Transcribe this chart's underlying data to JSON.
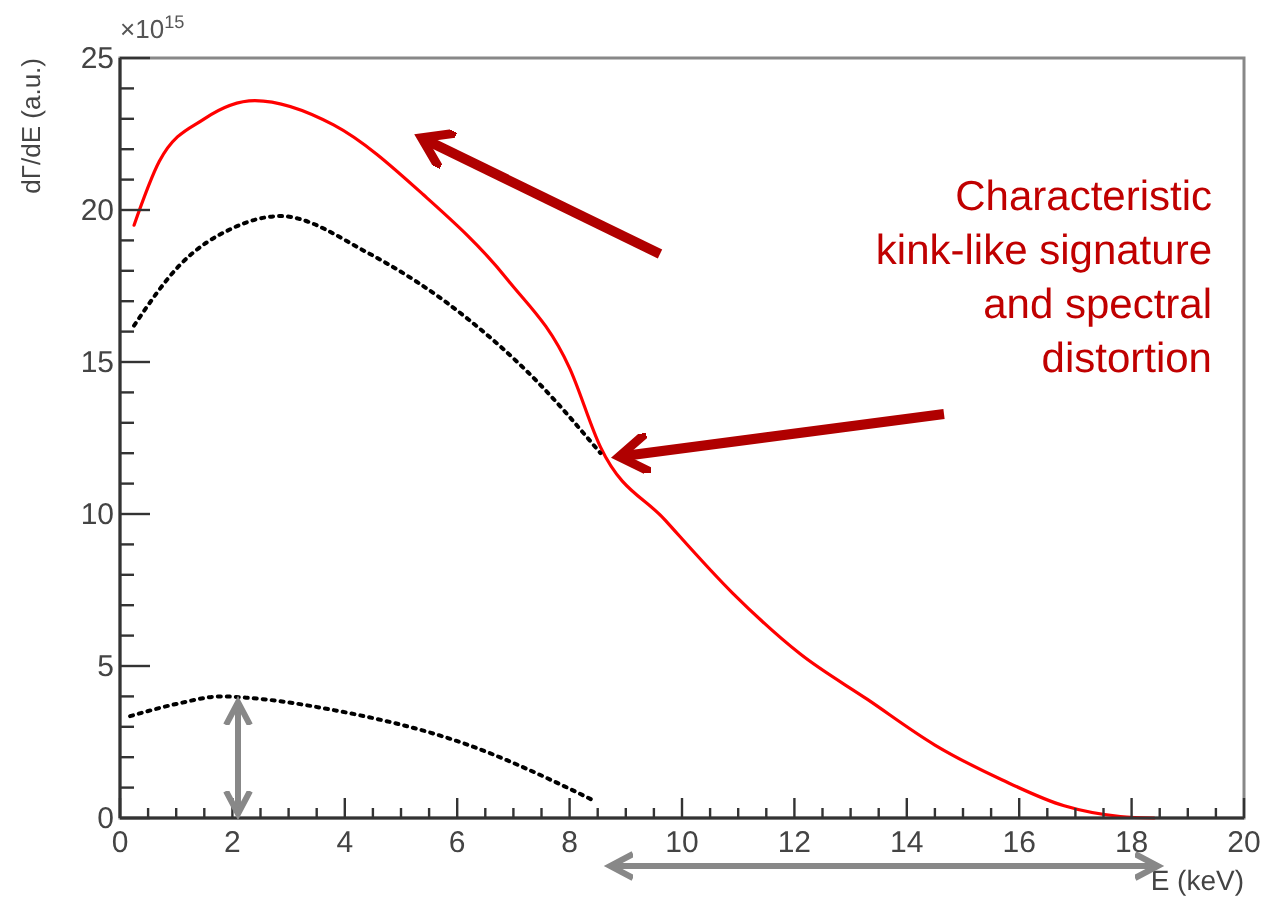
{
  "chart_data": {
    "type": "line",
    "xlabel": "E (keV)",
    "ylabel": "dΓ/dE (a.u.)",
    "xlim": [
      0,
      20
    ],
    "ylim": [
      0,
      25
    ],
    "xticks": [
      0,
      {
        "value": 0.5,
        "label": null
      },
      {
        "value": 1,
        "label": null
      },
      {
        "value": 1.5,
        "label": null
      },
      2,
      {
        "value": 2.5,
        "label": null
      },
      {
        "value": 3,
        "label": null
      },
      {
        "value": 3.5,
        "label": null
      },
      4,
      {
        "value": 4.5,
        "label": null
      },
      {
        "value": 5,
        "label": null
      },
      {
        "value": 5.5,
        "label": null
      },
      6,
      {
        "value": 6.5,
        "label": null
      },
      {
        "value": 7,
        "label": null
      },
      {
        "value": 7.5,
        "label": null
      },
      8,
      {
        "value": 8.5,
        "label": null
      },
      {
        "value": 9,
        "label": null
      },
      {
        "value": 9.5,
        "label": null
      },
      10,
      {
        "value": 10.5,
        "label": null
      },
      {
        "value": 11,
        "label": null
      },
      {
        "value": 11.5,
        "label": null
      },
      12,
      {
        "value": 12.5,
        "label": null
      },
      {
        "value": 13,
        "label": null
      },
      {
        "value": 13.5,
        "label": null
      },
      14,
      {
        "value": 14.5,
        "label": null
      },
      {
        "value": 15,
        "label": null
      },
      {
        "value": 15.5,
        "label": null
      },
      16,
      {
        "value": 16.5,
        "label": null
      },
      {
        "value": 17,
        "label": null
      },
      {
        "value": 17.5,
        "label": null
      },
      18,
      {
        "value": 18.5,
        "label": null
      },
      {
        "value": 19,
        "label": null
      },
      {
        "value": 19.5,
        "label": null
      },
      20
    ],
    "yticks": [
      0,
      {
        "value": 1,
        "label": null
      },
      {
        "value": 2,
        "label": null
      },
      {
        "value": 3,
        "label": null
      },
      {
        "value": 4,
        "label": null
      },
      5,
      {
        "value": 6,
        "label": null
      },
      {
        "value": 7,
        "label": null
      },
      {
        "value": 8,
        "label": null
      },
      {
        "value": 9,
        "label": null
      },
      10,
      {
        "value": 11,
        "label": null
      },
      {
        "value": 12,
        "label": null
      },
      {
        "value": 13,
        "label": null
      },
      {
        "value": 14,
        "label": null
      },
      15,
      {
        "value": 16,
        "label": null
      },
      {
        "value": 17,
        "label": null
      },
      {
        "value": 18,
        "label": null
      },
      {
        "value": 19,
        "label": null
      },
      20,
      {
        "value": 21,
        "label": null
      },
      {
        "value": 22,
        "label": null
      },
      {
        "value": 23,
        "label": null
      },
      {
        "value": 24,
        "label": null
      },
      25
    ],
    "grid": false,
    "marker": "none",
    "series": [
      {
        "color": "#ff0000",
        "line_style": "solid",
        "x": [
          0.25,
          0.7,
          1.5,
          2.4,
          3.8,
          5.4,
          6.9,
          8.0,
          8.55,
          9.7,
          10.9,
          12.1,
          13.3,
          14.5,
          15.7,
          16.8,
          17.8,
          18.4
        ],
        "values": [
          19.5,
          21.6,
          23.0,
          23.6,
          22.8,
          20.5,
          17.7,
          14.8,
          12.2,
          9.8,
          7.4,
          5.4,
          3.9,
          2.4,
          1.25,
          0.4,
          0.05,
          0
        ]
      },
      {
        "color": "#000000",
        "line_style": "dotted",
        "x": [
          0.25,
          1.07,
          2.0,
          2.85,
          4.4,
          6.2,
          7.4,
          8.55
        ],
        "values": [
          16.2,
          18.2,
          19.4,
          19.8,
          18.6,
          16.4,
          14.4,
          12.0
        ]
      },
      {
        "color": "#000000",
        "line_style": "dotted",
        "x": [
          0.18,
          1.0,
          1.8,
          2.3,
          3.8,
          6.2,
          7.9,
          8.4
        ],
        "values": [
          3.35,
          3.75,
          4.0,
          3.95,
          3.55,
          2.4,
          1.05,
          0.6
        ]
      }
    ],
    "annotations": [
      "×10$^{15}$",
      "Characteristic kink-like signature and spectral distortion"
    ]
  }
}
